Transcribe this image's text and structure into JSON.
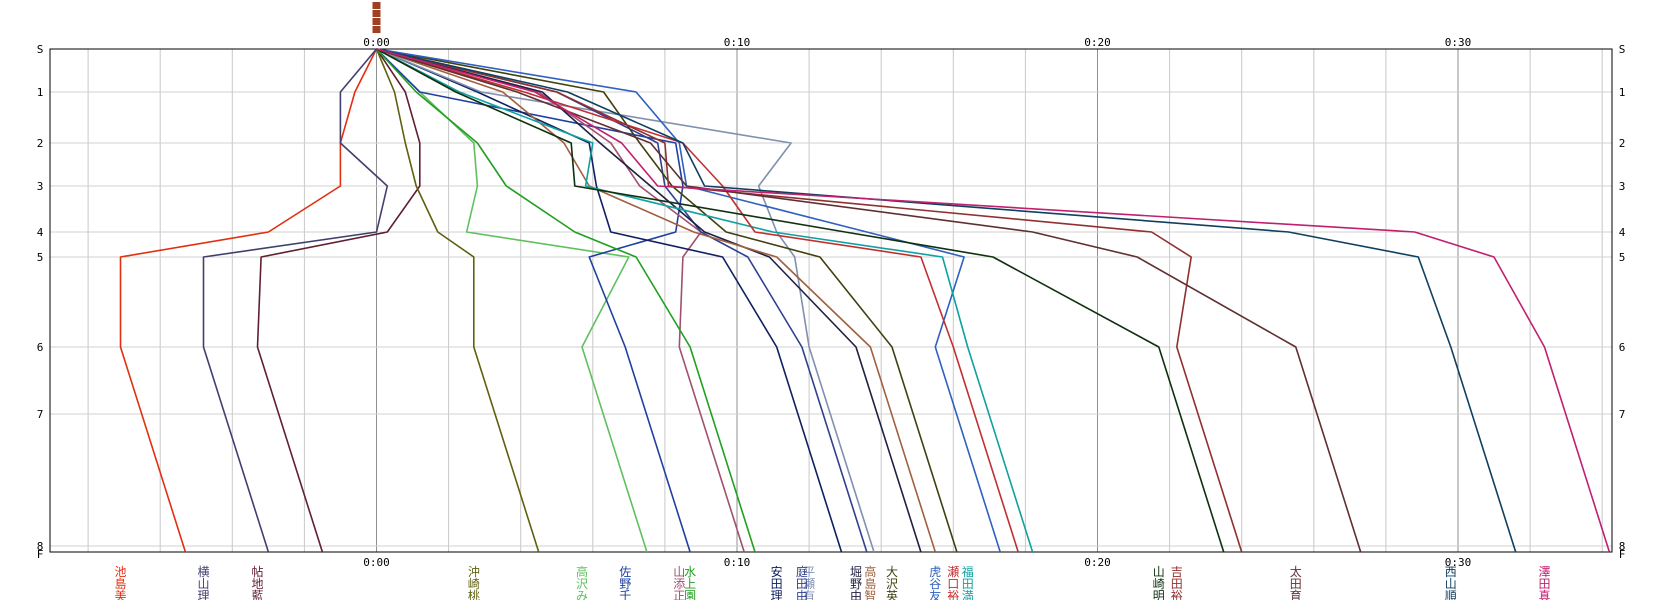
{
  "chart_data": {
    "type": "line",
    "title": "",
    "xlabel": "",
    "ylabel": "",
    "x_unit": "minutes",
    "xlim": [
      -9,
      34
    ],
    "x_ticks": [
      {
        "value": 0,
        "label": "0:00"
      },
      {
        "value": 10,
        "label": "0:10"
      },
      {
        "value": 20,
        "label": "0:20"
      },
      {
        "value": 30,
        "label": "0:30"
      }
    ],
    "y_ticks": [
      {
        "value": 0,
        "label": "S"
      },
      {
        "value": 1,
        "label": "1"
      },
      {
        "value": 2,
        "label": "2"
      },
      {
        "value": 3,
        "label": "3"
      },
      {
        "value": 4,
        "label": "4"
      },
      {
        "value": 5,
        "label": "5"
      },
      {
        "value": 6,
        "label": "6"
      },
      {
        "value": 7,
        "label": "7"
      },
      {
        "value": 8,
        "label": "8"
      },
      {
        "value": 9,
        "label": "F"
      }
    ],
    "y_levels": [
      0,
      1,
      2,
      3,
      4,
      5,
      6,
      7,
      8,
      9
    ],
    "vertical_grid": true,
    "horizontal_grid": true,
    "legend": "bottom, vertical labels under each line's finish point",
    "top_marker_color": "#a04020",
    "series": [
      {
        "name": "池島美",
        "color": "#e03010",
        "points": [
          0,
          -0.6,
          -1,
          -1,
          -3,
          -7.1,
          -7.1
        ]
      },
      {
        "name": "横山理",
        "color": "#404070",
        "points": [
          0,
          -1,
          -1,
          0.3,
          0,
          -4.8,
          -4.8
        ]
      },
      {
        "name": "帖地藍",
        "color": "#602030",
        "points": [
          0,
          0.8,
          1.2,
          1.2,
          0.3,
          -3.2,
          -3.3
        ]
      },
      {
        "name": "沖崎桃",
        "color": "#606010",
        "points": [
          0,
          0.5,
          0.8,
          1.1,
          1.7,
          2.7,
          2.7
        ]
      },
      {
        "name": "高沢み",
        "color": "#60c060",
        "points": [
          0,
          1.2,
          2.7,
          2.8,
          2.5,
          7.0,
          5.7
        ]
      },
      {
        "name": "佐野千",
        "color": "#2040a0",
        "points": [
          0,
          1.2,
          8.3,
          8.5,
          8.3,
          5.9,
          6.9
        ]
      },
      {
        "name": "山添正",
        "color": "#a05070",
        "points": [
          0,
          4.5,
          6.5,
          7.3,
          9.0,
          8.5,
          8.4
        ]
      },
      {
        "name": "水上園",
        "color": "#20a020",
        "points": [
          0,
          1.1,
          2.8,
          3.6,
          5.5,
          7.2,
          8.7
        ]
      },
      {
        "name": "安田理",
        "color": "#102060",
        "points": [
          0,
          2.8,
          5.9,
          6.1,
          6.5,
          9.6,
          11.1
        ]
      },
      {
        "name": "平瀬有",
        "color": "#8090b0",
        "points": [
          0,
          2.9,
          11.5,
          10.6,
          11.1,
          11.6,
          12.0
        ]
      },
      {
        "name": "庭田由",
        "color": "#304090",
        "points": [
          0,
          5.0,
          7.8,
          8.0,
          9.0,
          10.3,
          11.8
        ]
      },
      {
        "name": "堀野由",
        "color": "#202040",
        "points": [
          0,
          4.6,
          6.2,
          7.6,
          9.1,
          10.9,
          13.3
        ]
      },
      {
        "name": "高島智",
        "color": "#a06040",
        "points": [
          0,
          3.5,
          5.2,
          5.9,
          8.8,
          11.1,
          13.7
        ]
      },
      {
        "name": "大沢英",
        "color": "#404010",
        "points": [
          0,
          6.3,
          7.3,
          8.2,
          9.7,
          12.3,
          14.3
        ]
      },
      {
        "name": "虎谷友",
        "color": "#3060c0",
        "points": [
          0,
          7.2,
          8.4,
          8.6,
          13.6,
          16.3,
          15.5
        ]
      },
      {
        "name": "福田満",
        "color": "#10a0a0",
        "points": [
          0,
          2.3,
          6.0,
          5.8,
          11.0,
          15.7,
          16.4
        ]
      },
      {
        "name": "瀬口裕",
        "color": "#c03030",
        "points": [
          0,
          4.1,
          8.5,
          9.6,
          10.5,
          15.1,
          16.0
        ]
      },
      {
        "name": "山崎明",
        "color": "#103010",
        "points": [
          0,
          2.2,
          5.4,
          5.5,
          13.0,
          17.1,
          21.7
        ]
      },
      {
        "name": "吉田裕",
        "color": "#903030",
        "points": [
          0,
          5.0,
          8.0,
          8.1,
          21.5,
          22.6,
          22.2
        ]
      },
      {
        "name": "太田育",
        "color": "#603030",
        "points": [
          0,
          3.9,
          7.6,
          8.6,
          18.2,
          21.1,
          25.5
        ]
      },
      {
        "name": "西山順",
        "color": "#104060",
        "points": [
          0,
          5.3,
          8.5,
          9.1,
          25.3,
          28.9,
          29.8
        ]
      },
      {
        "name": "澤田真",
        "color": "#c02070",
        "points": [
          0,
          4.4,
          6.8,
          7.8,
          28.8,
          31.0,
          32.4
        ]
      }
    ]
  }
}
